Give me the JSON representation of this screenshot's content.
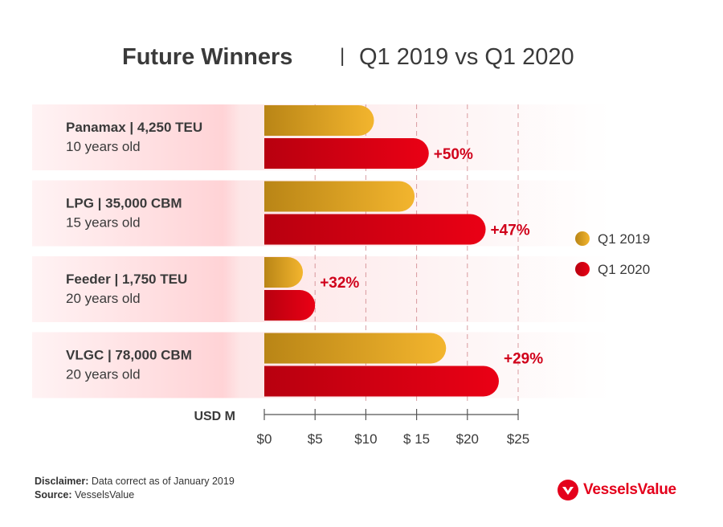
{
  "title": {
    "main": "Future Winners",
    "separator": "|",
    "sub": "Q1 2019 vs Q1 2020"
  },
  "chart_data": {
    "type": "bar",
    "orientation": "horizontal",
    "categories": [
      {
        "name": "Panamax | 4,250 TEU",
        "age": "10 years old"
      },
      {
        "name": "LPG | 35,000 CBM",
        "age": "15 years old"
      },
      {
        "name": "Feeder | 1,750 TEU",
        "age": "20 years old"
      },
      {
        "name": "VLGC | 78,000 CBM",
        "age": "20 years old"
      }
    ],
    "series": [
      {
        "name": "Q1 2019",
        "values": [
          10.8,
          14.8,
          3.8,
          17.9
        ],
        "color": "#f0b12c"
      },
      {
        "name": "Q1 2020",
        "values": [
          16.2,
          21.8,
          5.0,
          23.1
        ],
        "color": "#e4001b"
      }
    ],
    "change_labels": [
      "+50%",
      "+47%",
      "+32%",
      "+29%"
    ],
    "xlabel": "USD M",
    "xlim": [
      0,
      25
    ],
    "ticks": [
      0,
      5,
      10,
      15,
      20,
      25
    ],
    "tick_labels": [
      "$0",
      "$5",
      "$10",
      "$ 15",
      "$20",
      "$25"
    ],
    "grid": "dashed vertical",
    "legend_position": "right"
  },
  "footer": {
    "disclaimer_label": "Disclaimer:",
    "disclaimer_text": "Data correct as of January 2019",
    "source_label": "Source:",
    "source_text": "VesselsValue"
  },
  "logo": {
    "name": "VesselsValue",
    "icon": "vesselsvalue-logo-icon"
  }
}
